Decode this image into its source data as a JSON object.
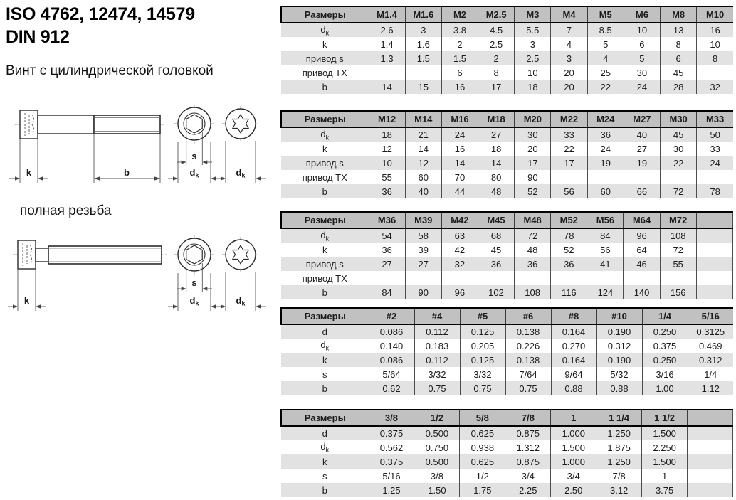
{
  "header": {
    "title_line1": "ISO 4762, 12474, 14579",
    "title_line2": "DIN 912",
    "subtitle": "Винт с цилиндрической головкой"
  },
  "drawings": {
    "full_thread_label": "полная резьба",
    "labels": {
      "k": "k",
      "b": "b",
      "s": "s",
      "d": "d",
      "d_sub": "k"
    }
  },
  "tables": [
    {
      "name": "metric-small",
      "header": [
        "Размеры",
        "M1.4",
        "M1.6",
        "M2",
        "M2.5",
        "M3",
        "M4",
        "M5",
        "M6",
        "M8",
        "M10"
      ],
      "rows": [
        {
          "label": "d",
          "label_sub": "k",
          "cells": [
            "2.6",
            "3",
            "3.8",
            "4.5",
            "5.5",
            "7",
            "8.5",
            "10",
            "13",
            "16"
          ]
        },
        {
          "label": "k",
          "label_sub": "",
          "cells": [
            "1.4",
            "1.6",
            "2",
            "2.5",
            "3",
            "4",
            "5",
            "6",
            "8",
            "10"
          ]
        },
        {
          "label": "привод s",
          "label_sub": "",
          "cells": [
            "1.3",
            "1.5",
            "1.5",
            "2",
            "2.5",
            "3",
            "4",
            "5",
            "6",
            "8"
          ]
        },
        {
          "label": "привод TX",
          "label_sub": "",
          "cells": [
            "",
            "",
            "6",
            "8",
            "10",
            "20",
            "25",
            "30",
            "45",
            ""
          ]
        },
        {
          "label": "b",
          "label_sub": "",
          "cells": [
            "14",
            "15",
            "16",
            "17",
            "18",
            "20",
            "22",
            "24",
            "28",
            "32"
          ]
        }
      ]
    },
    {
      "name": "metric-medium",
      "header": [
        "Размеры",
        "M12",
        "M14",
        "M16",
        "M18",
        "M20",
        "M22",
        "M24",
        "M27",
        "M30",
        "M33"
      ],
      "rows": [
        {
          "label": "d",
          "label_sub": "k",
          "cells": [
            "18",
            "21",
            "24",
            "27",
            "30",
            "33",
            "36",
            "40",
            "45",
            "50"
          ]
        },
        {
          "label": "k",
          "label_sub": "",
          "cells": [
            "12",
            "14",
            "16",
            "18",
            "20",
            "22",
            "24",
            "27",
            "30",
            "33"
          ]
        },
        {
          "label": "привод s",
          "label_sub": "",
          "cells": [
            "10",
            "12",
            "14",
            "14",
            "17",
            "17",
            "19",
            "19",
            "22",
            "24"
          ]
        },
        {
          "label": "привод TX",
          "label_sub": "",
          "cells": [
            "55",
            "60",
            "70",
            "80",
            "90",
            "",
            "",
            "",
            "",
            ""
          ]
        },
        {
          "label": "b",
          "label_sub": "",
          "cells": [
            "36",
            "40",
            "44",
            "48",
            "52",
            "56",
            "60",
            "66",
            "72",
            "78"
          ]
        }
      ]
    },
    {
      "name": "metric-large",
      "header": [
        "Размеры",
        "M36",
        "M39",
        "M42",
        "M45",
        "M48",
        "M52",
        "M56",
        "M64",
        "M72",
        ""
      ],
      "rows": [
        {
          "label": "d",
          "label_sub": "k",
          "cells": [
            "54",
            "58",
            "63",
            "68",
            "72",
            "78",
            "84",
            "96",
            "108",
            ""
          ]
        },
        {
          "label": "k",
          "label_sub": "",
          "cells": [
            "36",
            "39",
            "42",
            "45",
            "48",
            "52",
            "56",
            "64",
            "72",
            ""
          ]
        },
        {
          "label": "привод s",
          "label_sub": "",
          "cells": [
            "27",
            "27",
            "32",
            "36",
            "36",
            "36",
            "41",
            "46",
            "55",
            ""
          ]
        },
        {
          "label": "привод TX",
          "label_sub": "",
          "cells": [
            "",
            "",
            "",
            "",
            "",
            "",
            "",
            "",
            "",
            ""
          ]
        },
        {
          "label": "b",
          "label_sub": "",
          "cells": [
            "84",
            "90",
            "96",
            "102",
            "108",
            "116",
            "124",
            "140",
            "156",
            ""
          ]
        }
      ]
    },
    {
      "name": "imperial-small",
      "header": [
        "Размеры",
        "#2",
        "#4",
        "#5",
        "#6",
        "#8",
        "#10",
        "1/4",
        "5/16"
      ],
      "rows": [
        {
          "label": "d",
          "label_sub": "",
          "cells": [
            "0.086",
            "0.112",
            "0.125",
            "0.138",
            "0.164",
            "0.190",
            "0.250",
            "0.3125"
          ]
        },
        {
          "label": "d",
          "label_sub": "k",
          "cells": [
            "0.140",
            "0.183",
            "0.205",
            "0.226",
            "0.270",
            "0.312",
            "0.375",
            "0.469"
          ]
        },
        {
          "label": "k",
          "label_sub": "",
          "cells": [
            "0.086",
            "0.112",
            "0.125",
            "0.138",
            "0.164",
            "0.190",
            "0.250",
            "0.312"
          ]
        },
        {
          "label": "s",
          "label_sub": "",
          "cells": [
            "5/64",
            "3/32",
            "3/32",
            "7/64",
            "9/64",
            "5/32",
            "3/16",
            "1/4"
          ]
        },
        {
          "label": "b",
          "label_sub": "",
          "cells": [
            "0.62",
            "0.75",
            "0.75",
            "0.75",
            "0.88",
            "0.88",
            "1.00",
            "1.12"
          ]
        }
      ]
    },
    {
      "name": "imperial-large",
      "header": [
        "Размеры",
        "3/8",
        "1/2",
        "5/8",
        "7/8",
        "1",
        "1 1/4",
        "1 1/2",
        ""
      ],
      "rows": [
        {
          "label": "d",
          "label_sub": "",
          "cells": [
            "0.375",
            "0.500",
            "0.625",
            "0.875",
            "1.000",
            "1.250",
            "1.500",
            ""
          ]
        },
        {
          "label": "d",
          "label_sub": "k",
          "cells": [
            "0.562",
            "0.750",
            "0.938",
            "1.312",
            "1.500",
            "1.875",
            "2.250",
            ""
          ]
        },
        {
          "label": "k",
          "label_sub": "",
          "cells": [
            "0.375",
            "0.500",
            "0.625",
            "0.875",
            "1.000",
            "1.250",
            "1.500",
            ""
          ]
        },
        {
          "label": "s",
          "label_sub": "",
          "cells": [
            "5/16",
            "3/8",
            "1/2",
            "3/4",
            "3/4",
            "7/8",
            "1",
            ""
          ]
        },
        {
          "label": "b",
          "label_sub": "",
          "cells": [
            "1.25",
            "1.50",
            "1.75",
            "2.25",
            "2.50",
            "3.12",
            "3.75",
            ""
          ]
        }
      ]
    }
  ]
}
